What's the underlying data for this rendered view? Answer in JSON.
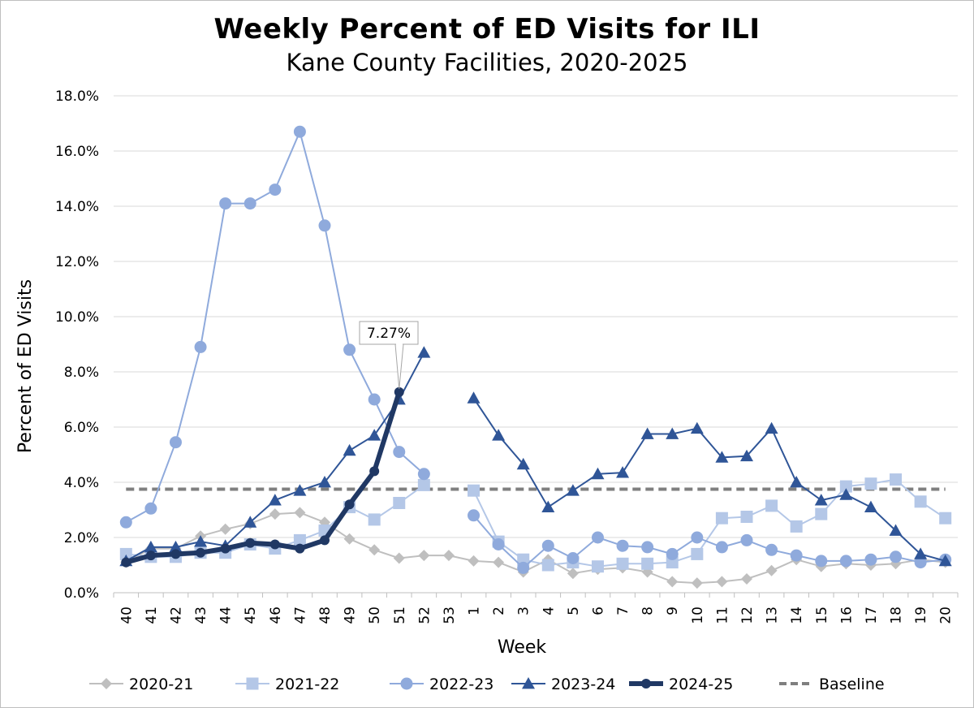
{
  "chart_data": {
    "type": "line",
    "title": "Weekly Percent of ED Visits for ILI",
    "subtitle": "Kane County Facilities, 2020-2025",
    "xlabel": "Week",
    "ylabel": "Percent of ED Visits",
    "ylim": [
      0,
      18
    ],
    "y_ticks": [
      "0.0%",
      "2.0%",
      "4.0%",
      "6.0%",
      "8.0%",
      "10.0%",
      "12.0%",
      "14.0%",
      "16.0%",
      "18.0%"
    ],
    "grid": "horizontal",
    "legend_position": "bottom",
    "categories": [
      "40",
      "41",
      "42",
      "43",
      "44",
      "45",
      "46",
      "47",
      "48",
      "49",
      "50",
      "51",
      "52",
      "53",
      "1",
      "2",
      "3",
      "4",
      "5",
      "6",
      "7",
      "8",
      "9",
      "10",
      "11",
      "12",
      "13",
      "14",
      "15",
      "16",
      "17",
      "18",
      "19",
      "20"
    ],
    "series": [
      {
        "name": "2020-21",
        "color": "#bfbfbf",
        "marker": "diamond",
        "width": 2,
        "values": [
          1.1,
          1.6,
          1.6,
          2.05,
          2.3,
          2.5,
          2.85,
          2.9,
          2.55,
          1.95,
          1.55,
          1.25,
          1.35,
          1.35,
          1.15,
          1.1,
          0.75,
          1.2,
          0.7,
          0.85,
          0.9,
          0.75,
          0.4,
          0.35,
          0.4,
          0.5,
          0.8,
          1.2,
          0.95,
          1.05,
          1.0,
          1.05,
          1.2,
          1.1
        ]
      },
      {
        "name": "2021-22",
        "color": "#b4c7e7",
        "marker": "square",
        "width": 2,
        "values": [
          1.4,
          1.3,
          1.3,
          1.45,
          1.45,
          1.75,
          1.6,
          1.9,
          2.25,
          3.1,
          2.65,
          3.25,
          3.9,
          null,
          3.7,
          1.85,
          1.2,
          1.0,
          1.1,
          0.95,
          1.05,
          1.05,
          1.1,
          1.4,
          2.7,
          2.75,
          3.15,
          2.4,
          2.85,
          3.85,
          3.95,
          4.1,
          3.3,
          2.7
        ]
      },
      {
        "name": "2022-23",
        "color": "#8faadc",
        "marker": "circle",
        "width": 2,
        "values": [
          2.55,
          3.05,
          5.45,
          8.9,
          14.1,
          14.1,
          14.6,
          16.7,
          13.3,
          8.8,
          7.0,
          5.1,
          4.3,
          null,
          2.8,
          1.75,
          0.9,
          1.7,
          1.25,
          2.0,
          1.7,
          1.65,
          1.4,
          2.0,
          1.65,
          1.9,
          1.55,
          1.35,
          1.15,
          1.15,
          1.2,
          1.3,
          1.1,
          1.2
        ]
      },
      {
        "name": "2023-24",
        "color": "#2f5597",
        "marker": "triangle",
        "width": 2,
        "values": [
          1.15,
          1.65,
          1.65,
          1.85,
          1.7,
          2.55,
          3.35,
          3.7,
          4.0,
          5.15,
          5.7,
          7.0,
          8.7,
          null,
          7.05,
          5.7,
          4.65,
          3.1,
          3.7,
          4.3,
          4.35,
          5.75,
          5.75,
          5.95,
          4.9,
          4.95,
          5.95,
          4.0,
          3.35,
          3.55,
          3.1,
          2.25,
          1.4,
          1.15
        ]
      },
      {
        "name": "2024-25",
        "color": "#203864",
        "marker": "circle-small",
        "width": 6,
        "values": [
          1.1,
          1.35,
          1.4,
          1.45,
          1.6,
          1.8,
          1.75,
          1.6,
          1.9,
          3.2,
          4.4,
          7.27,
          null,
          null,
          null,
          null,
          null,
          null,
          null,
          null,
          null,
          null,
          null,
          null,
          null,
          null,
          null,
          null,
          null,
          null,
          null,
          null,
          null,
          null
        ]
      }
    ],
    "baseline": {
      "name": "Baseline",
      "value": 3.75,
      "color": "#7f7f7f"
    },
    "annotation": {
      "text": "7.27%",
      "category": "51",
      "value": 7.27
    }
  }
}
